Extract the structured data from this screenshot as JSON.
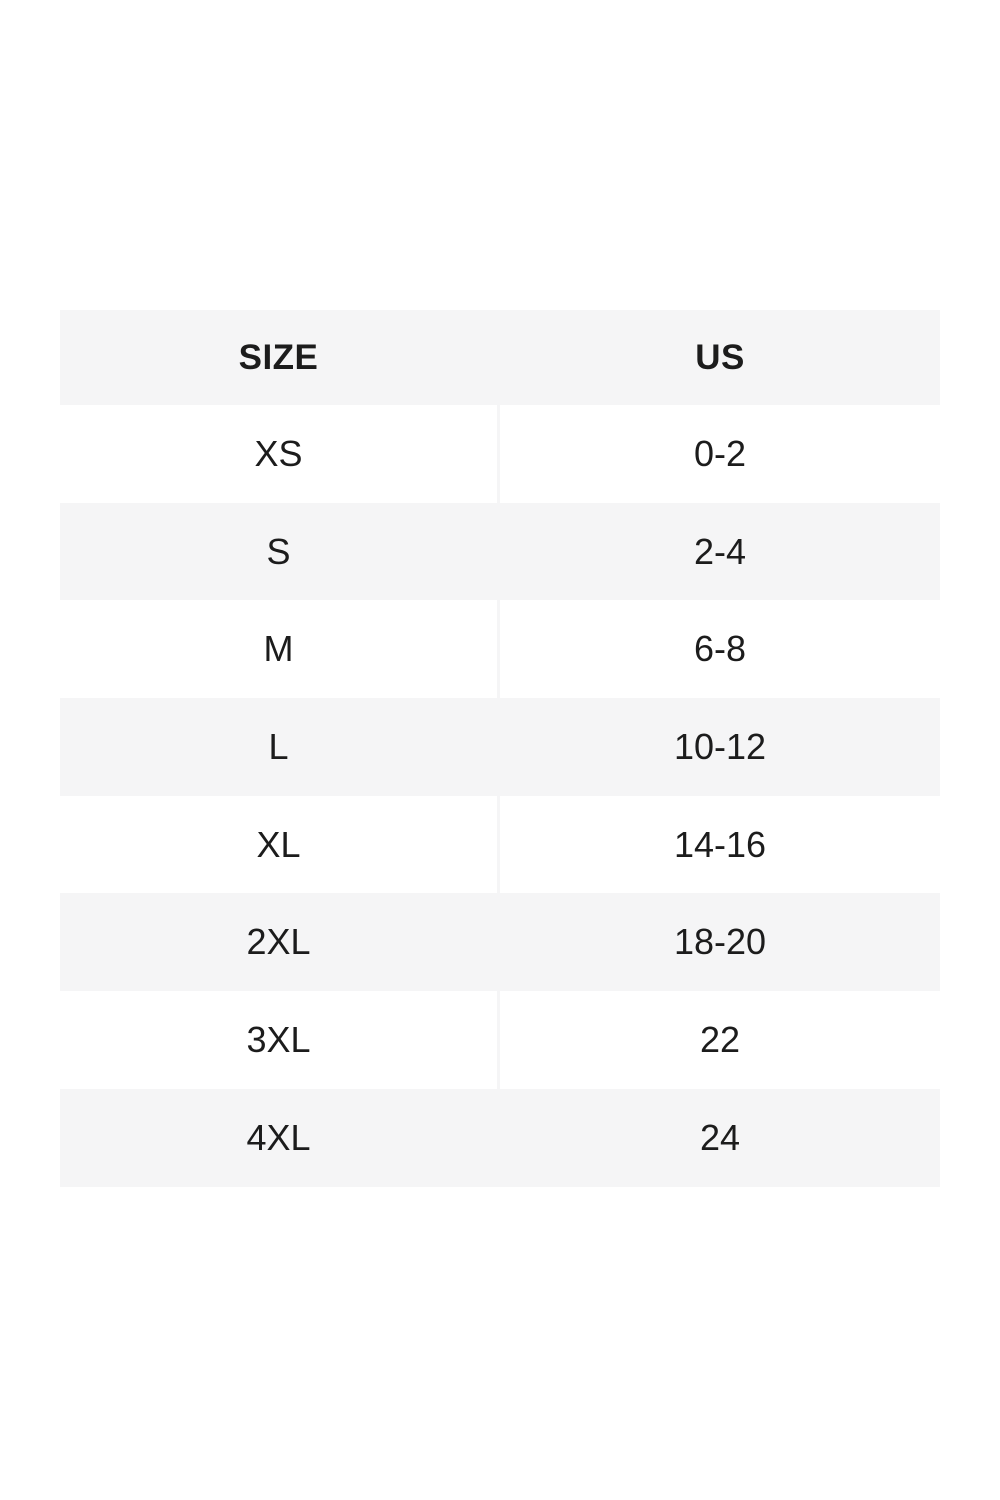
{
  "chart_data": {
    "type": "table",
    "title": "",
    "columns": [
      "SIZE",
      "US"
    ],
    "rows": [
      [
        "XS",
        "0-2"
      ],
      [
        "S",
        "2-4"
      ],
      [
        "M",
        "6-8"
      ],
      [
        "L",
        "10-12"
      ],
      [
        "XL",
        "14-16"
      ],
      [
        "2XL",
        "18-20"
      ],
      [
        "3XL",
        "22"
      ],
      [
        "4XL",
        "24"
      ]
    ],
    "layout": {
      "header_row_shaded": true,
      "body_alternation": "odd_rows_shaded_starting_second",
      "column_divider": true,
      "grid": "none"
    },
    "colors": {
      "page_bg": "#ffffff",
      "shaded_row_bg": "#f5f5f6",
      "white_row_bg": "#ffffff",
      "column_divider": "#f5f5f6",
      "text": "#1c1c1c"
    }
  }
}
